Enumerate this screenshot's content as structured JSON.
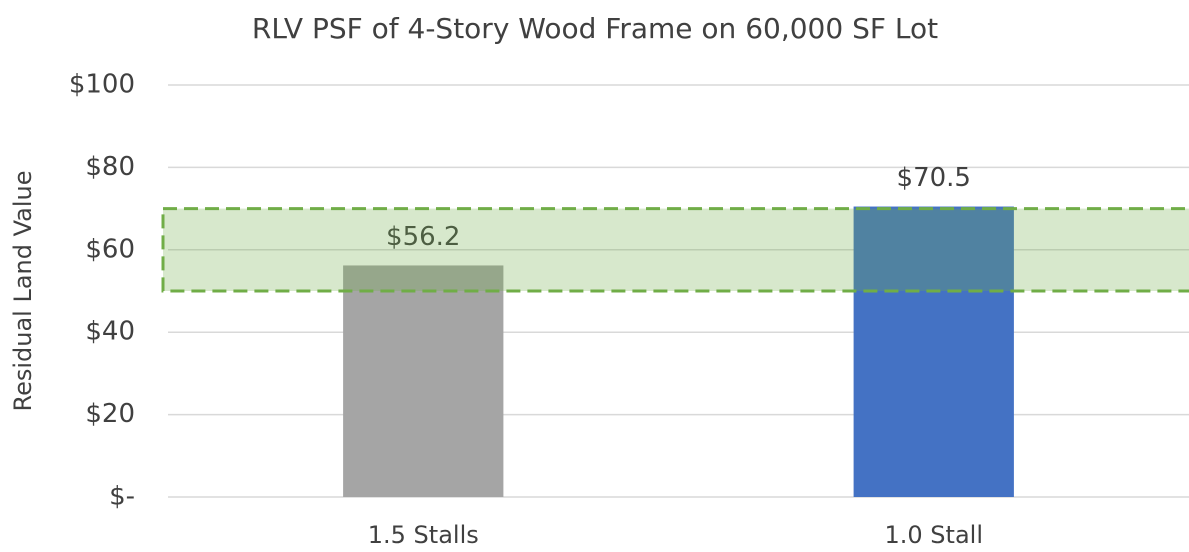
{
  "chart_data": {
    "type": "bar",
    "title": "RLV PSF of 4-Story Wood Frame on 60,000 SF Lot",
    "y_axis_label": "Residual Land Value",
    "categories": [
      "1.5 Stalls",
      "1.0 Stall"
    ],
    "values": [
      56.2,
      70.5
    ],
    "value_labels": [
      "$56.2",
      "$70.5"
    ],
    "colors": [
      "#a5a5a5",
      "#4472c4"
    ],
    "ylim": [
      0,
      100
    ],
    "yticks": [
      {
        "value": 0,
        "label": "$-"
      },
      {
        "value": 20,
        "label": "$20"
      },
      {
        "value": 40,
        "label": "$40"
      },
      {
        "value": 60,
        "label": "$60"
      },
      {
        "value": 80,
        "label": "$80"
      },
      {
        "value": 100,
        "label": "$100"
      }
    ],
    "grid": true,
    "highlight_band": {
      "from": 50,
      "to": 70,
      "color": "#70ad47"
    }
  }
}
